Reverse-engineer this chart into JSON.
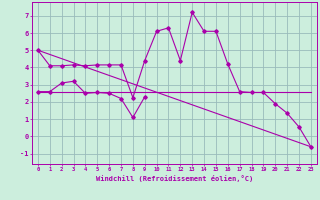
{
  "background_color": "#cceedd",
  "grid_color": "#99bbbb",
  "line_color": "#aa00aa",
  "xlabel": "Windchill (Refroidissement éolien,°C)",
  "xlim": [
    -0.5,
    23.5
  ],
  "ylim": [
    -1.6,
    7.8
  ],
  "yticks": [
    -1,
    0,
    1,
    2,
    3,
    4,
    5,
    6,
    7
  ],
  "xticks": [
    0,
    1,
    2,
    3,
    4,
    5,
    6,
    7,
    8,
    9,
    10,
    11,
    12,
    13,
    14,
    15,
    16,
    17,
    18,
    19,
    20,
    21,
    22,
    23
  ],
  "line1_x": [
    0,
    1,
    2,
    3,
    4,
    5,
    6,
    7,
    8,
    9,
    10,
    11,
    12,
    13,
    14,
    15,
    16,
    17,
    18,
    19,
    20,
    21,
    22,
    23
  ],
  "line1_y": [
    5.0,
    4.1,
    4.1,
    4.15,
    4.1,
    4.15,
    4.15,
    4.15,
    2.25,
    4.4,
    6.1,
    6.3,
    4.4,
    7.2,
    6.1,
    6.1,
    4.2,
    2.6,
    2.55,
    2.55,
    1.9,
    1.35,
    0.55,
    -0.6
  ],
  "line2_x": [
    0,
    1,
    2,
    3,
    4,
    5,
    6,
    7,
    8,
    9
  ],
  "line2_y": [
    2.6,
    2.6,
    3.1,
    3.2,
    2.5,
    2.55,
    2.5,
    2.2,
    1.1,
    2.3
  ],
  "line3_x": [
    0,
    23
  ],
  "line3_y": [
    2.55,
    2.55
  ],
  "line4_x": [
    0,
    23
  ],
  "line4_y": [
    5.0,
    -0.6
  ]
}
